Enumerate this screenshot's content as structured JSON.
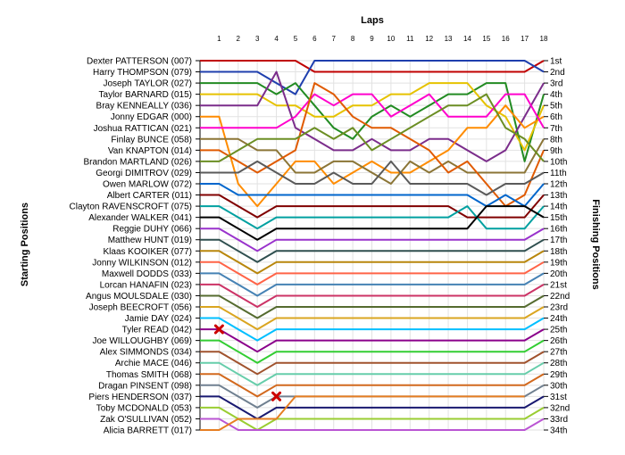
{
  "chart_data": {
    "type": "line",
    "title": "",
    "x_axis_label": "Laps",
    "left_axis_label": "Starting Positions",
    "right_axis_label": "Finishing Positions",
    "laps": [
      1,
      2,
      3,
      4,
      5,
      6,
      7,
      8,
      9,
      10,
      11,
      12,
      13,
      14,
      15,
      16,
      17,
      18
    ],
    "position_range": [
      1,
      34
    ],
    "grid": true,
    "drivers": [
      "Dexter PATTERSON (007)",
      "Harry THOMPSON (079)",
      "Joseph TAYLOR (027)",
      "Taylor BARNARD (015)",
      "Bray KENNEALLY (036)",
      "Jonny EDGAR (000)",
      "Joshua RATTICAN (021)",
      "Finlay BUNCE (058)",
      "Van KNAPTON (014)",
      "Brandon MARTLAND (026)",
      "Georgi DIMITROV (029)",
      "Owen MARLOW (072)",
      "Albert CARTER (011)",
      "Clayton RAVENSCROFT (075)",
      "Alexander WALKER (041)",
      "Reggie DUHY (066)",
      "Matthew HUNT (019)",
      "Klaas KOOIKER (077)",
      "Jonny WILKINSON (012)",
      "Maxwell DODDS (033)",
      "Lorcan HANAFIN (023)",
      "Angus MOULSDALE (030)",
      "Joseph BEECROFT (056)",
      "Jamie DAY (024)",
      "Tyler READ (042)",
      "Joe WILLOUGHBY (069)",
      "Alex SIMMONDS (034)",
      "Archie MACE (046)",
      "Thomas SMITH (068)",
      "Dragan PINSENT (098)",
      "Piers HENDERSON (037)",
      "Toby MCDONALD (053)",
      "Zak O'SULLIVAN (052)",
      "Alicia BARRETT (017)"
    ],
    "finishing_labels": [
      "1st",
      "2nd",
      "3rd",
      "4th",
      "5th",
      "6th",
      "7th",
      "8th",
      "9th",
      "10th",
      "11th",
      "12th",
      "13th",
      "14th",
      "15th",
      "16th",
      "17th",
      "18th",
      "19th",
      "20th",
      "21st",
      "22nd",
      "23rd",
      "24th",
      "25th",
      "26th",
      "27th",
      "28th",
      "29th",
      "30th",
      "31st",
      "32nd",
      "33rd",
      "34th"
    ],
    "series": [
      {
        "start": 1,
        "color": "#c00000",
        "positions": [
          1,
          1,
          1,
          1,
          1,
          2,
          2,
          2,
          2,
          2,
          2,
          2,
          2,
          2,
          2,
          2,
          2,
          1
        ]
      },
      {
        "start": 2,
        "color": "#1f3fae",
        "positions": [
          2,
          2,
          2,
          3,
          4,
          1,
          1,
          1,
          1,
          1,
          1,
          1,
          1,
          1,
          1,
          1,
          1,
          2
        ]
      },
      {
        "start": 3,
        "color": "#228b22",
        "positions": [
          3,
          3,
          3,
          4,
          3,
          5,
          7,
          8,
          6,
          5,
          6,
          5,
          4,
          4,
          3,
          3,
          10,
          4
        ]
      },
      {
        "start": 4,
        "color": "#e6c200",
        "positions": [
          4,
          4,
          4,
          5,
          5,
          6,
          6,
          5,
          5,
          4,
          4,
          3,
          3,
          3,
          5,
          6,
          9,
          5
        ]
      },
      {
        "start": 5,
        "color": "#7b2d8b",
        "positions": [
          5,
          5,
          5,
          2,
          7,
          8,
          9,
          9,
          8,
          9,
          9,
          8,
          8,
          9,
          10,
          9,
          6,
          3
        ]
      },
      {
        "start": 6,
        "color": "#ff8c00",
        "positions": [
          6,
          12,
          14,
          12,
          10,
          10,
          12,
          11,
          10,
          11,
          11,
          10,
          9,
          7,
          7,
          5,
          7,
          6
        ]
      },
      {
        "start": 7,
        "color": "#ff00cc",
        "positions": [
          7,
          7,
          7,
          7,
          6,
          4,
          5,
          4,
          4,
          6,
          5,
          4,
          6,
          6,
          6,
          4,
          4,
          7
        ]
      },
      {
        "start": 8,
        "color": "#8b7536",
        "positions": [
          8,
          8,
          9,
          9,
          11,
          11,
          10,
          10,
          11,
          12,
          10,
          11,
          10,
          11,
          11,
          11,
          11,
          8
        ]
      },
      {
        "start": 9,
        "color": "#e05a00",
        "positions": [
          9,
          10,
          11,
          10,
          9,
          3,
          4,
          6,
          7,
          7,
          8,
          9,
          11,
          10,
          12,
          14,
          13,
          9
        ]
      },
      {
        "start": 10,
        "color": "#6b8e23",
        "positions": [
          10,
          9,
          8,
          8,
          8,
          7,
          8,
          7,
          9,
          8,
          7,
          6,
          5,
          5,
          4,
          7,
          8,
          10
        ]
      },
      {
        "start": 11,
        "color": "#5a5a5a",
        "positions": [
          11,
          11,
          10,
          11,
          12,
          12,
          11,
          12,
          12,
          10,
          12,
          12,
          12,
          12,
          13,
          12,
          12,
          11
        ]
      },
      {
        "start": 12,
        "color": "#0066cc",
        "positions": [
          12,
          13,
          13,
          13,
          13,
          13,
          13,
          13,
          13,
          13,
          13,
          13,
          13,
          13,
          14,
          13,
          14,
          12
        ]
      },
      {
        "start": 13,
        "color": "#800000",
        "positions": [
          13,
          14,
          15,
          14,
          14,
          14,
          14,
          14,
          14,
          14,
          14,
          14,
          14,
          15,
          15,
          15,
          15,
          13
        ]
      },
      {
        "start": 14,
        "color": "#00a0a0",
        "positions": [
          14,
          15,
          16,
          15,
          15,
          15,
          15,
          15,
          15,
          15,
          15,
          15,
          15,
          14,
          16,
          16,
          16,
          14
        ]
      },
      {
        "start": 15,
        "color": "#000000",
        "positions": [
          15,
          16,
          17,
          16,
          16,
          16,
          16,
          16,
          16,
          16,
          16,
          16,
          16,
          16,
          14,
          14,
          14,
          15
        ]
      },
      {
        "start": 16,
        "color": "#9932cc",
        "positions": [
          16,
          17,
          18,
          17,
          17,
          17,
          17,
          17,
          17,
          17,
          17,
          17,
          17,
          17,
          17,
          17,
          17,
          16
        ]
      },
      {
        "start": 17,
        "color": "#2f4f4f",
        "positions": [
          17,
          18,
          19,
          18,
          18,
          18,
          18,
          18,
          18,
          18,
          18,
          18,
          18,
          18,
          18,
          18,
          18,
          17
        ]
      },
      {
        "start": 18,
        "color": "#b8860b",
        "positions": [
          18,
          19,
          20,
          19,
          19,
          19,
          19,
          19,
          19,
          19,
          19,
          19,
          19,
          19,
          19,
          19,
          19,
          18
        ]
      },
      {
        "start": 19,
        "color": "#ff6347",
        "positions": [
          19,
          20,
          21,
          20,
          20,
          20,
          20,
          20,
          20,
          20,
          20,
          20,
          20,
          20,
          20,
          20,
          20,
          19
        ]
      },
      {
        "start": 20,
        "color": "#4682b4",
        "positions": [
          20,
          21,
          22,
          21,
          21,
          21,
          21,
          21,
          21,
          21,
          21,
          21,
          21,
          21,
          21,
          21,
          21,
          20
        ]
      },
      {
        "start": 21,
        "color": "#cc3366",
        "positions": [
          21,
          22,
          23,
          22,
          22,
          22,
          22,
          22,
          22,
          22,
          22,
          22,
          22,
          22,
          22,
          22,
          22,
          21
        ]
      },
      {
        "start": 22,
        "color": "#556b2f",
        "positions": [
          22,
          23,
          24,
          23,
          23,
          23,
          23,
          23,
          23,
          23,
          23,
          23,
          23,
          23,
          23,
          23,
          23,
          22
        ]
      },
      {
        "start": 23,
        "color": "#daa520",
        "positions": [
          23,
          24,
          25,
          24,
          24,
          24,
          24,
          24,
          24,
          24,
          24,
          24,
          24,
          24,
          24,
          24,
          24,
          23
        ]
      },
      {
        "start": 24,
        "color": "#00bfff",
        "positions": [
          24,
          25,
          26,
          25,
          25,
          25,
          25,
          25,
          25,
          25,
          25,
          25,
          25,
          25,
          25,
          25,
          25,
          24
        ]
      },
      {
        "start": 25,
        "color": "#8b008b",
        "positions": [
          25,
          26,
          27,
          26,
          26,
          26,
          26,
          26,
          26,
          26,
          26,
          26,
          26,
          26,
          26,
          26,
          26,
          25
        ]
      },
      {
        "start": 26,
        "color": "#32cd32",
        "positions": [
          26,
          27,
          28,
          27,
          27,
          27,
          27,
          27,
          27,
          27,
          27,
          27,
          27,
          27,
          27,
          27,
          27,
          26
        ]
      },
      {
        "start": 27,
        "color": "#a0522d",
        "positions": [
          27,
          28,
          29,
          28,
          28,
          28,
          28,
          28,
          28,
          28,
          28,
          28,
          28,
          28,
          28,
          28,
          28,
          27
        ]
      },
      {
        "start": 28,
        "color": "#66cdaa",
        "positions": [
          28,
          29,
          30,
          29,
          29,
          29,
          29,
          29,
          29,
          29,
          29,
          29,
          29,
          29,
          29,
          29,
          29,
          28
        ]
      },
      {
        "start": 29,
        "color": "#d2691e",
        "positions": [
          29,
          30,
          31,
          30,
          30,
          30,
          30,
          30,
          30,
          30,
          30,
          30,
          30,
          30,
          30,
          30,
          30,
          29
        ]
      },
      {
        "start": 30,
        "color": "#708090",
        "positions": [
          30,
          31,
          32,
          31,
          31,
          31,
          31,
          31,
          31,
          31,
          31,
          31,
          31,
          31,
          31,
          31,
          31,
          30
        ]
      },
      {
        "start": 31,
        "color": "#191970",
        "positions": [
          31,
          32,
          33,
          32,
          32,
          32,
          32,
          32,
          32,
          32,
          32,
          32,
          32,
          32,
          32,
          32,
          32,
          31
        ]
      },
      {
        "start": 32,
        "color": "#9acd32",
        "positions": [
          32,
          33,
          34,
          33,
          33,
          33,
          33,
          33,
          33,
          33,
          33,
          33,
          33,
          33,
          33,
          33,
          33,
          32
        ]
      },
      {
        "start": 33,
        "color": "#ba55d3",
        "positions": [
          33,
          34,
          34,
          34,
          34,
          34,
          34,
          34,
          34,
          34,
          34,
          34,
          34,
          34,
          34,
          34,
          34,
          33
        ]
      },
      {
        "start": 34,
        "color": "#e67e22",
        "positions": [
          34,
          33,
          33,
          33,
          31,
          31,
          31,
          31,
          31,
          31,
          31,
          31,
          31,
          31,
          31,
          31,
          31,
          null
        ]
      }
    ],
    "retirements": [
      {
        "start": 25,
        "lap": 1,
        "position": 25
      },
      {
        "start": 34,
        "lap": 4,
        "position": 31
      }
    ]
  }
}
